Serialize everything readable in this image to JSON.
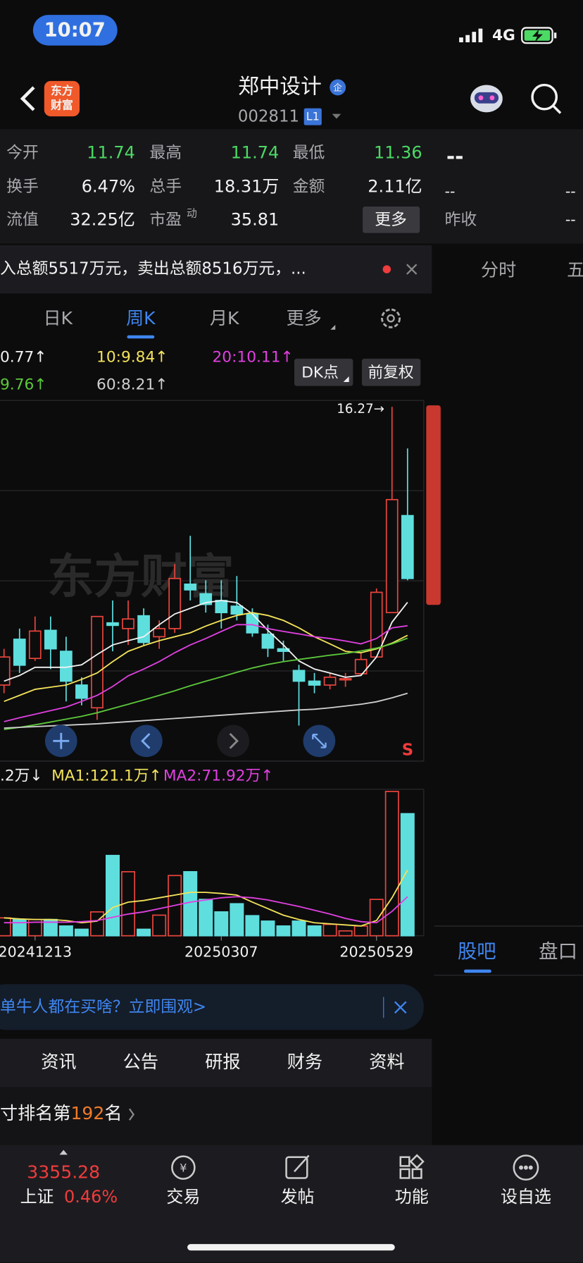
{
  "status": {
    "time": "10:07",
    "network": "4G"
  },
  "header": {
    "logo_top": "东方",
    "logo_bottom": "财富",
    "title": "郑中设计",
    "badge": "企",
    "code": "002811",
    "level": "L1"
  },
  "quote": {
    "rows": [
      [
        {
          "label": "今开",
          "value": "11.74"
        },
        {
          "label": "最高",
          "value": "11.74"
        },
        {
          "label": "最低",
          "value": "11.36"
        }
      ],
      [
        {
          "label": "换手",
          "value": "6.47%"
        },
        {
          "label": "总手",
          "value": "18.31万"
        },
        {
          "label": "金额",
          "value": "2.11亿"
        }
      ],
      [
        {
          "label": "流值",
          "value": "32.25亿"
        },
        {
          "label": "市盈",
          "sup": "动",
          "value": "35.81"
        }
      ]
    ],
    "more": "更多",
    "side_top": "--",
    "side_left": "--",
    "side_right": "--",
    "prev_close_label": "昨收",
    "prev_close": "--"
  },
  "ticker": "入总额5517万元，卖出总额8516万元，...",
  "side_tabs": [
    "分时",
    "五"
  ],
  "k_tabs": [
    "日K",
    "周K",
    "月K",
    "更多"
  ],
  "buttons": [
    "DK点",
    "前复权"
  ],
  "chart_data": {
    "type": "candlestick",
    "watermark": "东方财富",
    "max_label": "16.27→",
    "up_color": "#e8453c",
    "down_color": "#5fdede",
    "categories": [
      null,
      null,
      "20241213",
      null,
      null,
      null,
      null,
      null,
      null,
      null,
      null,
      null,
      null,
      null,
      "20250307",
      null,
      null,
      null,
      null,
      null,
      null,
      null,
      null,
      null,
      "20250529",
      null,
      null
    ],
    "open": [
      8.44,
      9.73,
      9.19,
      9.98,
      9.39,
      8.44,
      7.8,
      10.19,
      10.03,
      10.39,
      9.8,
      10.03,
      11.28,
      11.01,
      10.82,
      10.66,
      10.44,
      9.87,
      9.46,
      8.85,
      8.55,
      8.44,
      8.6,
      8.76,
      9.23,
      10.48,
      13.21
    ],
    "high": [
      9.46,
      10.03,
      10.37,
      10.37,
      9.8,
      8.66,
      10.37,
      10.82,
      10.82,
      10.6,
      10.26,
      11.85,
      12.64,
      11.39,
      11.39,
      11.51,
      10.6,
      10.14,
      9.69,
      9.01,
      8.78,
      8.78,
      8.78,
      9.35,
      11.16,
      16.27,
      15.1
    ],
    "low": [
      8.21,
      8.78,
      9.12,
      8.89,
      7.98,
      7.87,
      7.46,
      9.39,
      9.57,
      9.57,
      9.46,
      9.91,
      10.82,
      10.48,
      10.03,
      10.26,
      9.8,
      9.23,
      9.12,
      7.3,
      8.21,
      8.32,
      8.39,
      8.71,
      9.23,
      10.48,
      11.39
    ],
    "close": [
      9.23,
      9.0,
      9.96,
      9.46,
      8.55,
      8.07,
      10.37,
      10.12,
      10.3,
      9.64,
      10.03,
      11.44,
      11.12,
      10.71,
      10.48,
      10.44,
      9.91,
      9.48,
      9.39,
      8.55,
      8.44,
      8.66,
      8.62,
      9.16,
      11.05,
      13.66,
      11.44
    ],
    "ylim": [
      6.3,
      16.45
    ],
    "series": [
      {
        "label": "0.77↑",
        "color": "#f2f2f2",
        "values": [
          8.55,
          8.71,
          8.94,
          8.94,
          8.94,
          9.01,
          9.3,
          9.57,
          9.69,
          9.8,
          10.14,
          10.44,
          10.6,
          10.76,
          10.82,
          10.76,
          10.44,
          9.98,
          9.57,
          9.12,
          8.89,
          8.78,
          8.66,
          8.71,
          9.23,
          10.21,
          10.77
        ]
      },
      {
        "label": "10:9.84↑",
        "color": "#f3e35a",
        "values": [
          7.98,
          8.15,
          8.32,
          8.38,
          8.44,
          8.6,
          8.78,
          9.1,
          9.39,
          9.55,
          9.69,
          9.8,
          9.91,
          10.1,
          10.26,
          10.4,
          10.48,
          10.4,
          10.26,
          10.05,
          9.8,
          9.6,
          9.39,
          9.35,
          9.46,
          9.62,
          9.84
        ]
      },
      {
        "label": "20:10.11↑",
        "color": "#e040e0",
        "values": [
          7.41,
          7.52,
          7.62,
          7.72,
          7.82,
          7.98,
          8.15,
          8.4,
          8.7,
          8.89,
          9.1,
          9.35,
          9.57,
          9.75,
          9.95,
          10.14,
          10.14,
          10.03,
          9.95,
          9.88,
          9.8,
          9.75,
          9.68,
          9.6,
          9.75,
          10.05,
          10.11
        ]
      },
      {
        "label": "9.76↑",
        "color": "#5cc83a",
        "values": [
          7.19,
          7.25,
          7.32,
          7.4,
          7.48,
          7.56,
          7.66,
          7.78,
          7.9,
          8.02,
          8.15,
          8.28,
          8.42,
          8.55,
          8.67,
          8.8,
          8.92,
          9.02,
          9.1,
          9.16,
          9.22,
          9.28,
          9.33,
          9.4,
          9.48,
          9.6,
          9.76
        ]
      },
      {
        "label": "60:8.21↑",
        "color": "#cfcfcf",
        "values": [
          7.23,
          7.25,
          7.27,
          7.29,
          7.31,
          7.33,
          7.35,
          7.38,
          7.41,
          7.44,
          7.47,
          7.5,
          7.53,
          7.56,
          7.59,
          7.62,
          7.65,
          7.68,
          7.71,
          7.74,
          7.76,
          7.8,
          7.85,
          7.9,
          7.97,
          8.08,
          8.21
        ]
      }
    ],
    "signal": "S",
    "volume": {
      "ylim": [
        0,
        270
      ],
      "lead_label": ".2万↓",
      "values": [
        33,
        30,
        30,
        30,
        18,
        12,
        44,
        148,
        118,
        12,
        38,
        111,
        118,
        67,
        44,
        59,
        37,
        27,
        18,
        27,
        18,
        21,
        9,
        18,
        67,
        266,
        225
      ],
      "series": [
        {
          "label": "MA1:121.1万↑",
          "color": "#f3e35a",
          "values": [
            33,
            31,
            30,
            30,
            28,
            24,
            27,
            52,
            62,
            65,
            70,
            75,
            80,
            80,
            78,
            75,
            62,
            50,
            38,
            30,
            24,
            22,
            20,
            18,
            28,
            70,
            121.1
          ]
        },
        {
          "label": "MA2:71.92万↑",
          "color": "#e040e0",
          "values": [
            24,
            24,
            25,
            25,
            25,
            26,
            28,
            34,
            40,
            44,
            50,
            56,
            62,
            66,
            70,
            72,
            70,
            66,
            60,
            54,
            47,
            40,
            32,
            26,
            24,
            45,
            71.92
          ]
        }
      ]
    }
  },
  "side_tabs2": [
    "股吧",
    "盘口"
  ],
  "banner": "单牛人都在买啥？立即围观>",
  "info_tabs": [
    "资讯",
    "公告",
    "研报",
    "财务",
    "资料"
  ],
  "rank": {
    "prefix": "寸排名第",
    "number": "192",
    "suffix": "名"
  },
  "bottom_nav": {
    "index_value": "3355.28",
    "index_name": "上证",
    "index_change": "0.46%",
    "items": [
      "交易",
      "发帖",
      "功能",
      "设自选"
    ]
  }
}
